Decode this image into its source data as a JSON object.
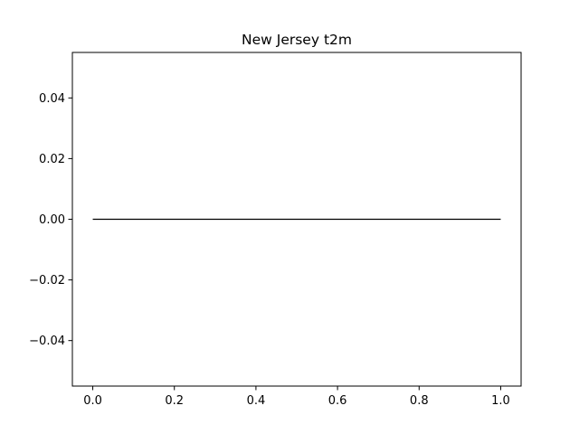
{
  "chart_data": {
    "type": "line",
    "title": "New Jersey t2m",
    "xlabel": "",
    "ylabel": "",
    "xlim": [
      -0.05,
      1.05
    ],
    "ylim": [
      -0.055,
      0.055
    ],
    "x_ticks": [
      0.0,
      0.2,
      0.4,
      0.6,
      0.8,
      1.0
    ],
    "x_tick_labels": [
      "0.0",
      "0.2",
      "0.4",
      "0.6",
      "0.8",
      "1.0"
    ],
    "y_ticks": [
      -0.04,
      -0.02,
      0.0,
      0.02,
      0.04
    ],
    "y_tick_labels": [
      "−0.04",
      "−0.02",
      "0.00",
      "0.02",
      "0.04"
    ],
    "grid": false,
    "legend": false,
    "series": [
      {
        "x": [
          0.0,
          1.0
        ],
        "y": [
          0.0,
          0.0
        ],
        "color": "#000000"
      }
    ]
  }
}
